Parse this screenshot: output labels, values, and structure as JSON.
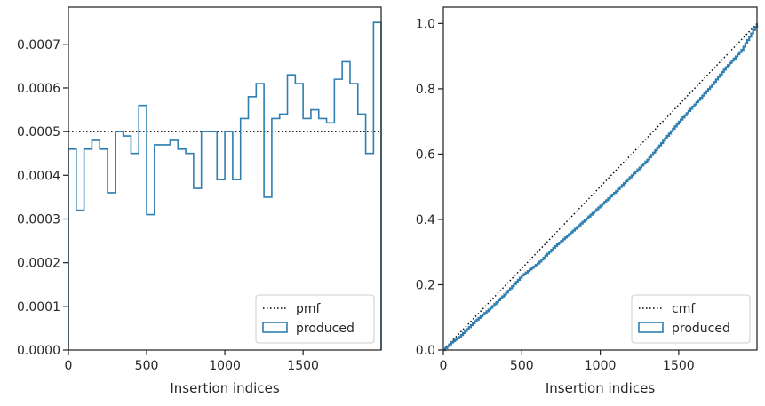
{
  "chart_data": [
    {
      "type": "line",
      "subtype": "step-histogram",
      "title": "",
      "xlabel": "Insertion indices",
      "ylabel": "",
      "xlim": [
        0,
        1999
      ],
      "ylim": [
        0,
        0.000785
      ],
      "xticks": [
        0,
        500,
        1000,
        1500
      ],
      "xtick_labels": [
        "0",
        "500",
        "1000",
        "1500"
      ],
      "yticks": [
        0,
        0.0001,
        0.0002,
        0.0003,
        0.0004,
        0.0005,
        0.0006,
        0.0007
      ],
      "ytick_labels": [
        "0.0000",
        "0.0001",
        "0.0002",
        "0.0003",
        "0.0004",
        "0.0005",
        "0.0006",
        "0.0007"
      ],
      "grid": false,
      "legend_position": "lower-right",
      "series": [
        {
          "name": "pmf",
          "style": "dotted",
          "color": "#000000",
          "x": [
            0,
            1999
          ],
          "values": [
            0.0005,
            0.0005
          ]
        },
        {
          "name": "produced",
          "style": "step",
          "color": "#2f7fb0",
          "bin_edges": [
            0,
            50,
            100,
            150,
            200,
            250,
            300,
            350,
            400,
            450,
            500,
            550,
            600,
            650,
            700,
            750,
            800,
            850,
            900,
            950,
            1000,
            1050,
            1100,
            1150,
            1200,
            1250,
            1300,
            1350,
            1400,
            1450,
            1500,
            1550,
            1600,
            1650,
            1700,
            1750,
            1800,
            1850,
            1900,
            1950,
            1999
          ],
          "values": [
            0.00046,
            0.00032,
            0.00046,
            0.00048,
            0.00046,
            0.00036,
            0.0005,
            0.00049,
            0.00045,
            0.00056,
            0.00031,
            0.00047,
            0.00047,
            0.00048,
            0.00046,
            0.00045,
            0.00037,
            0.0005,
            0.0005,
            0.00039,
            0.0005,
            0.00039,
            0.00053,
            0.00058,
            0.00061,
            0.00035,
            0.00053,
            0.00054,
            0.00063,
            0.00061,
            0.00053,
            0.00055,
            0.00053,
            0.00052,
            0.00062,
            0.00066,
            0.00061,
            0.00054,
            0.00045,
            0.00075
          ]
        }
      ]
    },
    {
      "type": "line",
      "subtype": "cumulative",
      "title": "",
      "xlabel": "Insertion indices",
      "ylabel": "",
      "xlim": [
        0,
        1999
      ],
      "ylim": [
        0,
        1.05
      ],
      "xticks": [
        0,
        500,
        1000,
        1500
      ],
      "xtick_labels": [
        "0",
        "500",
        "1000",
        "1500"
      ],
      "yticks": [
        0,
        0.2,
        0.4,
        0.6,
        0.8,
        1.0
      ],
      "ytick_labels": [
        "0.0",
        "0.2",
        "0.4",
        "0.6",
        "0.8",
        "1.0"
      ],
      "grid": false,
      "legend_position": "lower-right",
      "series": [
        {
          "name": "cmf",
          "style": "dotted",
          "color": "#000000",
          "x": [
            0,
            1999
          ],
          "values": [
            0,
            1.0
          ]
        },
        {
          "name": "produced",
          "style": "step",
          "color": "#2f7fb0",
          "x": [
            0,
            50,
            100,
            200,
            300,
            400,
            500,
            600,
            700,
            800,
            900,
            1000,
            1100,
            1200,
            1300,
            1400,
            1500,
            1600,
            1700,
            1800,
            1900,
            1999
          ],
          "values": [
            0,
            0.023,
            0.04,
            0.088,
            0.129,
            0.176,
            0.228,
            0.265,
            0.313,
            0.355,
            0.398,
            0.442,
            0.487,
            0.535,
            0.583,
            0.641,
            0.699,
            0.752,
            0.806,
            0.866,
            0.919,
            1.0
          ]
        }
      ]
    }
  ]
}
